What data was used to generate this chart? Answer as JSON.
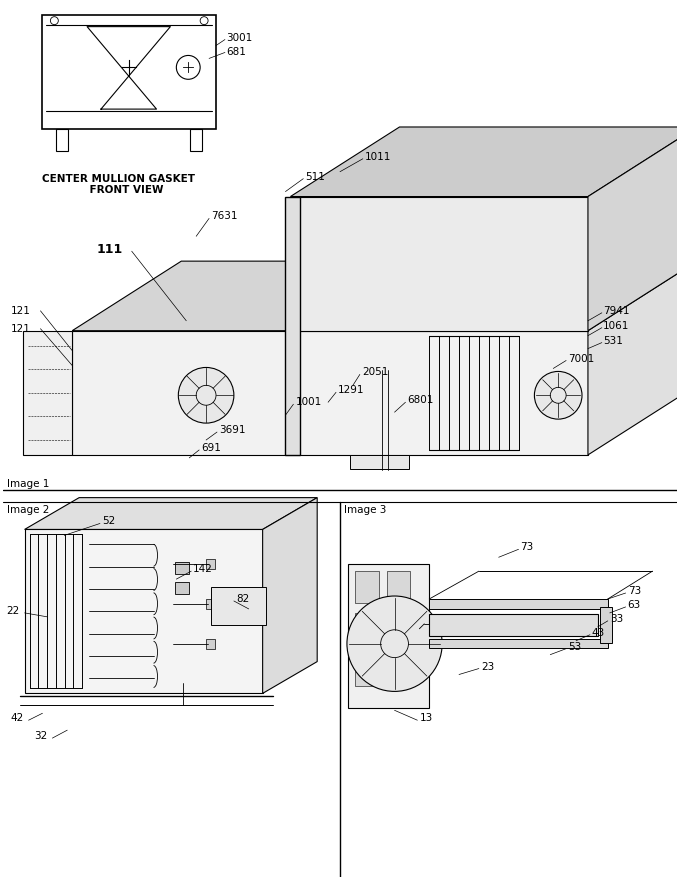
{
  "bg_color": "#ffffff",
  "line_color": "#000000",
  "text_color": "#000000",
  "image1_label": "Image 1",
  "image2_label": "Image 2",
  "image3_label": "Image 3",
  "caption": "CENTER MULLION GASKET\n    FRONT VIEW",
  "label_3001": "3001",
  "label_681": "681",
  "label_1011": "1011",
  "label_511": "511",
  "label_7631": "7631",
  "label_111": "111",
  "label_121a": "121",
  "label_121b": "121",
  "label_7941": "7941",
  "label_1061": "1061",
  "label_531": "531",
  "label_7001": "7001",
  "label_2051": "2051",
  "label_1291": "1291",
  "label_6801": "6801",
  "label_1001": "1001",
  "label_3691": "3691",
  "label_691": "691",
  "label_52": "52",
  "label_22": "22",
  "label_142": "142",
  "label_82": "82",
  "label_42": "42",
  "label_32": "32",
  "label_73a": "73",
  "label_73b": "73",
  "label_63": "63",
  "label_33": "33",
  "label_43": "43",
  "label_53": "53",
  "label_23": "23",
  "label_13": "13"
}
